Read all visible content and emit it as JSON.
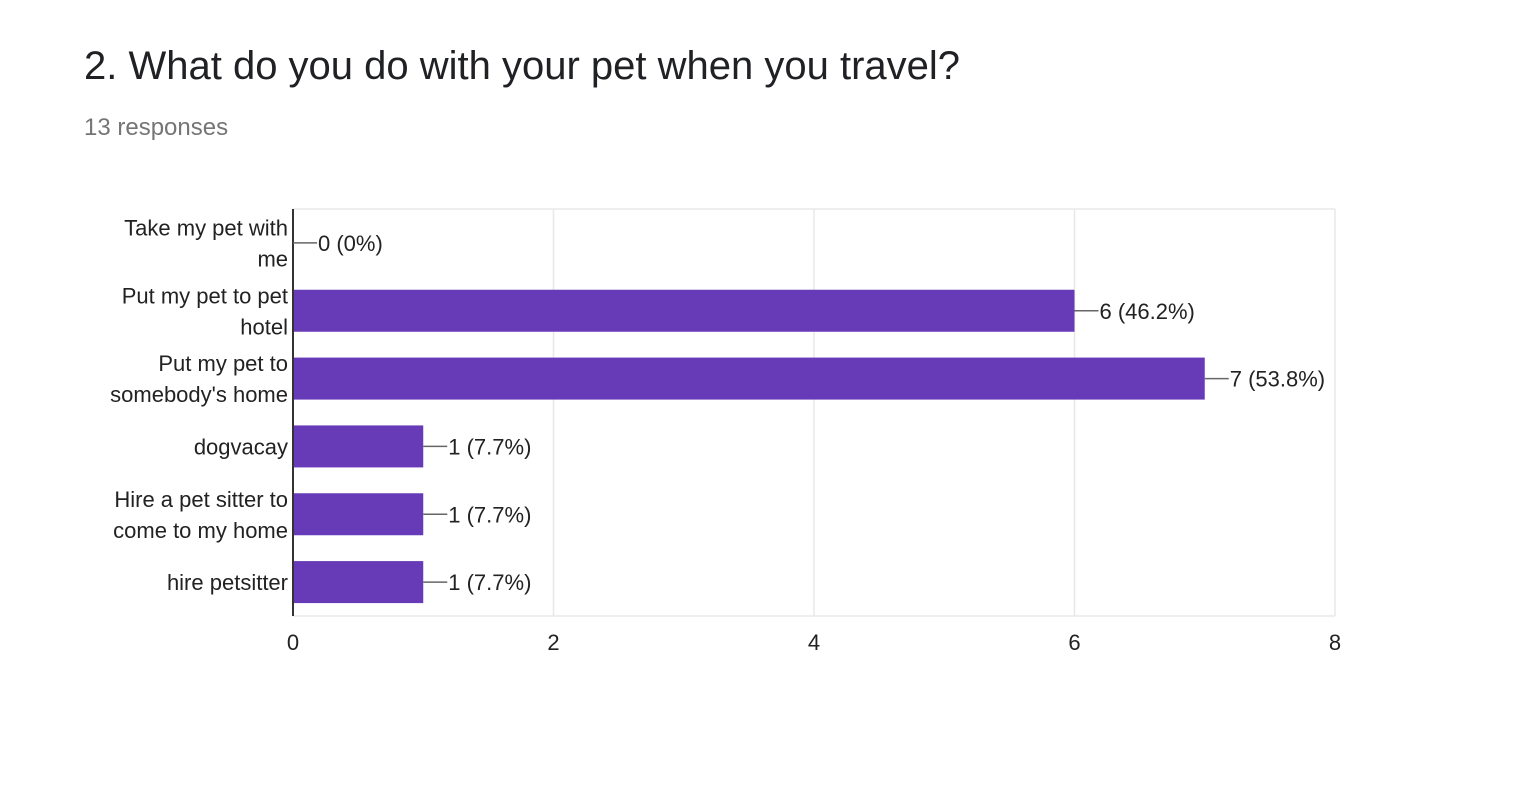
{
  "question": {
    "title": "2. What do you do with your pet when you travel?",
    "responses": "13 responses"
  },
  "colors": {
    "bar": "#673ab7",
    "grid": "#e8e8e8",
    "axis": "#333333",
    "text": "#222222",
    "subtext": "#757575"
  },
  "chart_data": {
    "type": "bar",
    "orientation": "horizontal",
    "categories": [
      [
        "Take my pet with",
        "me"
      ],
      [
        "Put my pet to pet",
        "hotel"
      ],
      [
        "Put my pet to",
        "somebody's home"
      ],
      [
        "dogvacay"
      ],
      [
        "Hire a pet sitter to",
        "come to my home"
      ],
      [
        "hire petsitter"
      ]
    ],
    "values": [
      0,
      6,
      7,
      1,
      1,
      1
    ],
    "data_labels": [
      "0 (0%)",
      "6 (46.2%)",
      "7 (53.8%)",
      "1 (7.7%)",
      "1 (7.7%)",
      "1 (7.7%)"
    ],
    "xlim": [
      0,
      8
    ],
    "xticks": [
      0,
      2,
      4,
      6,
      8
    ],
    "grid": true,
    "title": "",
    "xlabel": "",
    "ylabel": ""
  }
}
